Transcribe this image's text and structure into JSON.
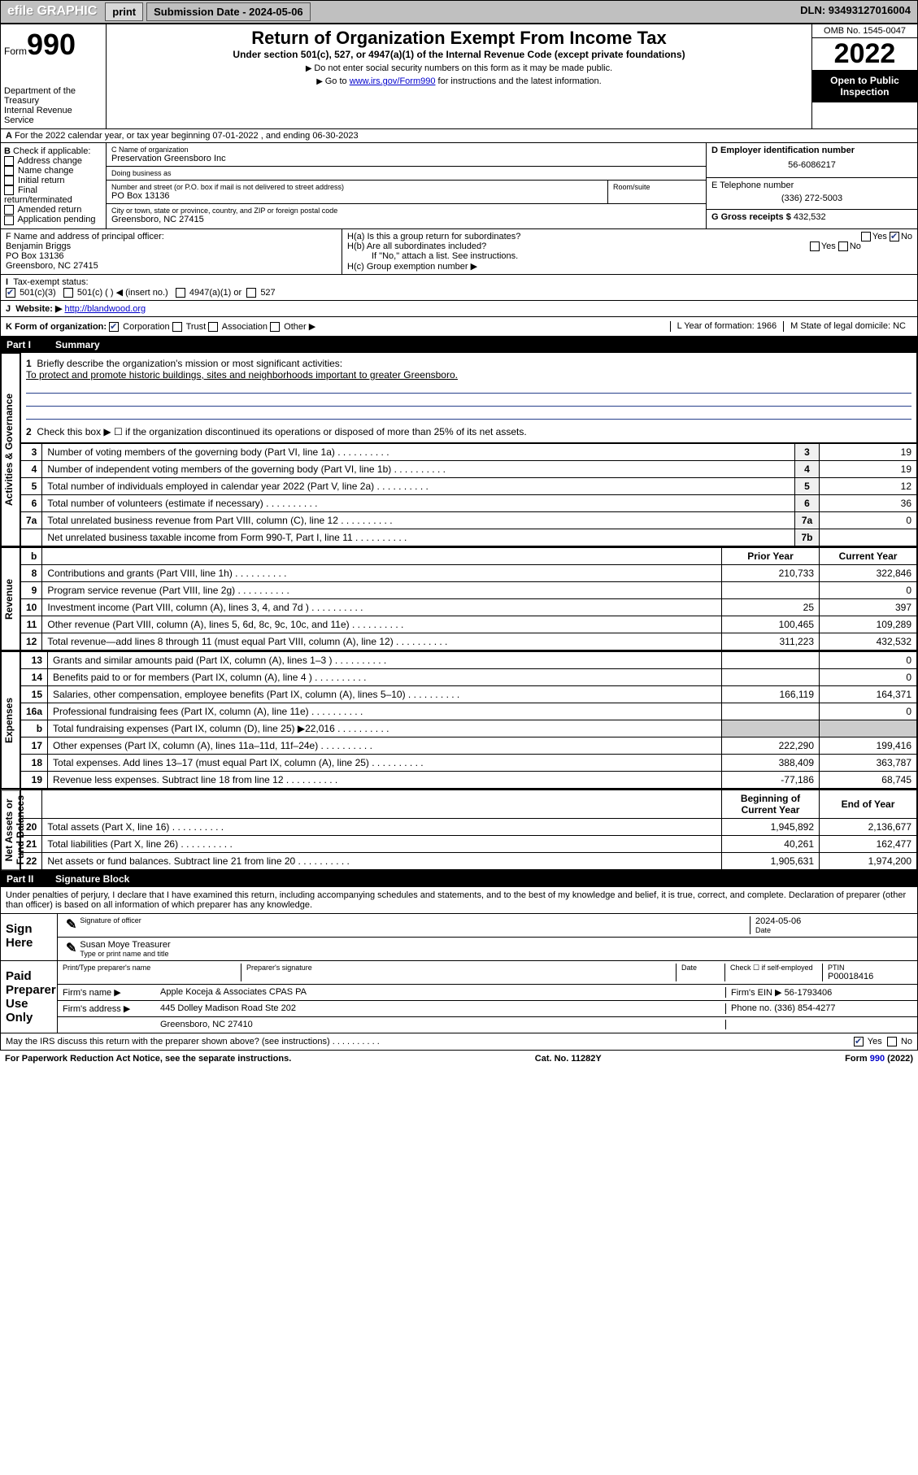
{
  "topbar": {
    "efile": "efile GRAPHIC",
    "print": "print",
    "submission_label": "Submission Date - 2024-05-06",
    "dln_label": "DLN: 93493127016004"
  },
  "header": {
    "form_word": "Form",
    "form_num": "990",
    "dept1": "Department of the Treasury",
    "dept2": "Internal Revenue Service",
    "title": "Return of Organization Exempt From Income Tax",
    "subtitle": "Under section 501(c), 527, or 4947(a)(1) of the Internal Revenue Code (except private foundations)",
    "note1": "Do not enter social security numbers on this form as it may be made public.",
    "note2_prefix": "Go to ",
    "note2_link": "www.irs.gov/Form990",
    "note2_suffix": " for instructions and the latest information.",
    "omb": "OMB No. 1545-0047",
    "year": "2022",
    "inspect": "Open to Public Inspection"
  },
  "A": {
    "text": "For the 2022 calendar year, or tax year beginning 07-01-2022   , and ending 06-30-2023"
  },
  "B": {
    "label": "Check if applicable:",
    "items": [
      "Address change",
      "Name change",
      "Initial return",
      "Final return/terminated",
      "Amended return",
      "Application pending"
    ]
  },
  "C": {
    "name_lbl": "C Name of organization",
    "name": "Preservation Greensboro Inc",
    "dba_lbl": "Doing business as",
    "dba": "",
    "street_lbl": "Number and street (or P.O. box if mail is not delivered to street address)",
    "room_lbl": "Room/suite",
    "street": "PO Box 13136",
    "city_lbl": "City or town, state or province, country, and ZIP or foreign postal code",
    "city": "Greensboro, NC  27415"
  },
  "D": {
    "lbl": "D Employer identification number",
    "val": "56-6086217"
  },
  "E": {
    "lbl": "E Telephone number",
    "val": "(336) 272-5003"
  },
  "G": {
    "lbl": "G Gross receipts $",
    "val": "432,532"
  },
  "F": {
    "lbl": "F  Name and address of principal officer:",
    "name": "Benjamin Briggs",
    "addr1": "PO Box 13136",
    "addr2": "Greensboro, NC  27415"
  },
  "H": {
    "a": "H(a)  Is this a group return for subordinates?",
    "a_yes": "Yes",
    "a_no": "No",
    "b": "H(b)  Are all subordinates included?",
    "b_yes": "Yes",
    "b_no": "No",
    "b_note": "If \"No,\" attach a list. See instructions.",
    "c": "H(c)  Group exemption number ▶"
  },
  "I": {
    "lbl": "Tax-exempt status:",
    "opt1": "501(c)(3)",
    "opt2": "501(c) (    ) ◀ (insert no.)",
    "opt3": "4947(a)(1) or",
    "opt4": "527"
  },
  "J": {
    "lbl": "Website: ▶",
    "val": "http://blandwood.org"
  },
  "K": {
    "lbl": "K Form of organization:",
    "o1": "Corporation",
    "o2": "Trust",
    "o3": "Association",
    "o4": "Other ▶"
  },
  "L": {
    "lbl": "L Year of formation: 1966"
  },
  "M": {
    "lbl": "M State of legal domicile: NC"
  },
  "part1": {
    "num": "Part I",
    "title": "Summary"
  },
  "summary": {
    "l1_lbl": "Briefly describe the organization's mission or most significant activities:",
    "l1_val": "To protect and promote historic buildings, sites and neighborhoods important to greater Greensboro.",
    "l2": "Check this box ▶ ☐  if the organization discontinued its operations or disposed of more than 25% of its net assets.",
    "rows_gov": [
      {
        "n": "3",
        "t": "Number of voting members of the governing body (Part VI, line 1a)",
        "b": "3",
        "v": "19"
      },
      {
        "n": "4",
        "t": "Number of independent voting members of the governing body (Part VI, line 1b)",
        "b": "4",
        "v": "19"
      },
      {
        "n": "5",
        "t": "Total number of individuals employed in calendar year 2022 (Part V, line 2a)",
        "b": "5",
        "v": "12"
      },
      {
        "n": "6",
        "t": "Total number of volunteers (estimate if necessary)",
        "b": "6",
        "v": "36"
      },
      {
        "n": "7a",
        "t": "Total unrelated business revenue from Part VIII, column (C), line 12",
        "b": "7a",
        "v": "0"
      },
      {
        "n": "",
        "t": "Net unrelated business taxable income from Form 990-T, Part I, line 11",
        "b": "7b",
        "v": ""
      }
    ],
    "col_prior": "Prior Year",
    "col_curr": "Current Year",
    "rows_rev": [
      {
        "n": "8",
        "t": "Contributions and grants (Part VIII, line 1h)",
        "p": "210,733",
        "c": "322,846"
      },
      {
        "n": "9",
        "t": "Program service revenue (Part VIII, line 2g)",
        "p": "",
        "c": "0"
      },
      {
        "n": "10",
        "t": "Investment income (Part VIII, column (A), lines 3, 4, and 7d )",
        "p": "25",
        "c": "397"
      },
      {
        "n": "11",
        "t": "Other revenue (Part VIII, column (A), lines 5, 6d, 8c, 9c, 10c, and 11e)",
        "p": "100,465",
        "c": "109,289"
      },
      {
        "n": "12",
        "t": "Total revenue—add lines 8 through 11 (must equal Part VIII, column (A), line 12)",
        "p": "311,223",
        "c": "432,532"
      }
    ],
    "rows_exp": [
      {
        "n": "13",
        "t": "Grants and similar amounts paid (Part IX, column (A), lines 1–3 )",
        "p": "",
        "c": "0"
      },
      {
        "n": "14",
        "t": "Benefits paid to or for members (Part IX, column (A), line 4 )",
        "p": "",
        "c": "0"
      },
      {
        "n": "15",
        "t": "Salaries, other compensation, employee benefits (Part IX, column (A), lines 5–10)",
        "p": "166,119",
        "c": "164,371"
      },
      {
        "n": "16a",
        "t": "Professional fundraising fees (Part IX, column (A), line 11e)",
        "p": "",
        "c": "0"
      },
      {
        "n": "b",
        "t": "Total fundraising expenses (Part IX, column (D), line 25) ▶22,016",
        "p": "GREY",
        "c": "GREY"
      },
      {
        "n": "17",
        "t": "Other expenses (Part IX, column (A), lines 11a–11d, 11f–24e)",
        "p": "222,290",
        "c": "199,416"
      },
      {
        "n": "18",
        "t": "Total expenses. Add lines 13–17 (must equal Part IX, column (A), line 25)",
        "p": "388,409",
        "c": "363,787"
      },
      {
        "n": "19",
        "t": "Revenue less expenses. Subtract line 18 from line 12",
        "p": "-77,186",
        "c": "68,745"
      }
    ],
    "col_beg": "Beginning of Current Year",
    "col_end": "End of Year",
    "rows_na": [
      {
        "n": "20",
        "t": "Total assets (Part X, line 16)",
        "p": "1,945,892",
        "c": "2,136,677"
      },
      {
        "n": "21",
        "t": "Total liabilities (Part X, line 26)",
        "p": "40,261",
        "c": "162,477"
      },
      {
        "n": "22",
        "t": "Net assets or fund balances. Subtract line 21 from line 20",
        "p": "1,905,631",
        "c": "1,974,200"
      }
    ]
  },
  "vtabs": {
    "gov": "Activities & Governance",
    "rev": "Revenue",
    "exp": "Expenses",
    "na": "Net Assets or\nFund Balances"
  },
  "part2": {
    "num": "Part II",
    "title": "Signature Block"
  },
  "sig": {
    "decl": "Under penalties of perjury, I declare that I have examined this return, including accompanying schedules and statements, and to the best of my knowledge and belief, it is true, correct, and complete. Declaration of preparer (other than officer) is based on all information of which preparer has any knowledge.",
    "sign_here": "Sign Here",
    "sig_officer": "Signature of officer",
    "sig_date": "2024-05-06",
    "date_lbl": "Date",
    "name_title": "Susan Moye  Treasurer",
    "name_title_lbl": "Type or print name and title",
    "paid": "Paid Preparer Use Only",
    "prep_name_lbl": "Print/Type preparer's name",
    "prep_sig_lbl": "Preparer's signature",
    "prep_date_lbl": "Date",
    "prep_self": "Check ☐ if self-employed",
    "ptin_lbl": "PTIN",
    "ptin": "P00018416",
    "firm_name_lbl": "Firm's name    ▶",
    "firm_name": "Apple Koceja & Associates CPAS PA",
    "firm_ein_lbl": "Firm's EIN ▶",
    "firm_ein": "56-1793406",
    "firm_addr_lbl": "Firm's address ▶",
    "firm_addr1": "445 Dolley Madison Road Ste 202",
    "firm_addr2": "Greensboro, NC  27410",
    "phone_lbl": "Phone no.",
    "phone": "(336) 854-4277",
    "discuss": "May the IRS discuss this return with the preparer shown above? (see instructions)",
    "d_yes": "Yes",
    "d_no": "No"
  },
  "footer": {
    "left": "For Paperwork Reduction Act Notice, see the separate instructions.",
    "mid": "Cat. No. 11282Y",
    "right": "Form 990 (2022)"
  },
  "colors": {
    "link": "#0000cc",
    "check": "#27408b"
  }
}
